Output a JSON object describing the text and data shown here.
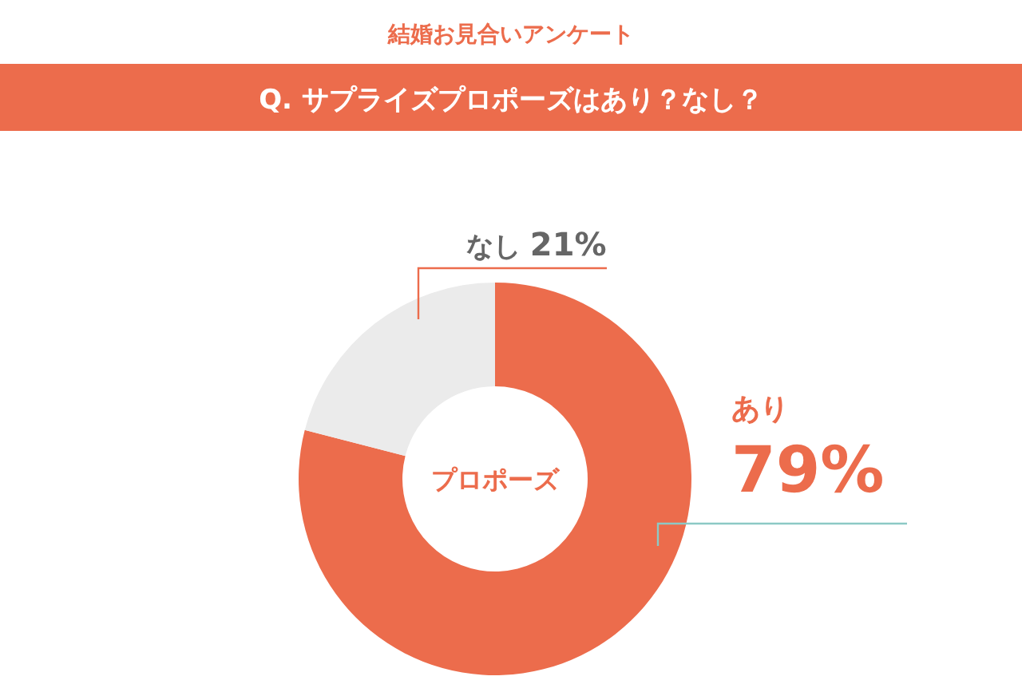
{
  "chart_data": {
    "type": "donut",
    "title": "結婚お見合いアンケート",
    "subtitle": "Q. サプライズプロポーズはあり？なし？",
    "categories": [
      "あり",
      "なし"
    ],
    "values": [
      79,
      21
    ],
    "value_labels": [
      "79%",
      "21%"
    ],
    "colors": [
      "#ec6c4c",
      "#ebebeb"
    ],
    "annotations": [
      "プロポーズ"
    ],
    "legend": false
  }
}
